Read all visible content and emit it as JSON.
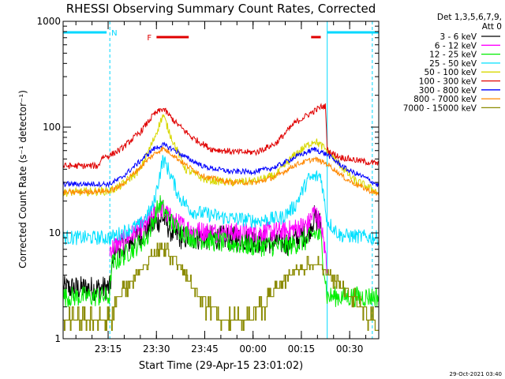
{
  "chart_data": {
    "type": "line",
    "title": "RHESSI Observing Summary Count Rates, Corrected",
    "ylabel": "Corrected Count Rate (s⁻¹ detector⁻¹)",
    "xlabel": "Start Time (29-Apr-15 23:01:02)",
    "yscale": "log",
    "ylim": [
      1,
      1000
    ],
    "xlim_minutes": [
      0,
      98
    ],
    "y_ticks": [
      {
        "v": 1,
        "label": "1"
      },
      {
        "v": 10,
        "label": "10"
      },
      {
        "v": 100,
        "label": "100"
      },
      {
        "v": 1000,
        "label": "1000"
      }
    ],
    "x_ticks": [
      {
        "t": 13.97,
        "label": "23:15"
      },
      {
        "t": 28.97,
        "label": "23:30"
      },
      {
        "t": 43.97,
        "label": "23:45"
      },
      {
        "t": 58.97,
        "label": "00:00"
      },
      {
        "t": 73.97,
        "label": "00:15"
      },
      {
        "t": 88.97,
        "label": "00:30"
      }
    ],
    "legend_header": [
      "Det 1,3,5,6,7,9,",
      "Att 0"
    ],
    "legend_position": "right",
    "timestamp": "29-Oct-2021 03:40",
    "flags": {
      "night": {
        "label": "N",
        "color": "#00d8ff",
        "segments": [
          [
            0,
            13.5
          ],
          [
            82,
            98
          ]
        ]
      },
      "flare": {
        "label": "F",
        "color": "#e00000",
        "segments": [
          [
            29,
            39
          ],
          [
            77,
            80
          ]
        ]
      }
    },
    "vlines": [
      {
        "t": 14.5,
        "style": "dashed"
      },
      {
        "t": 82,
        "style": "solid"
      },
      {
        "t": 96,
        "style": "dashed"
      }
    ],
    "series": [
      {
        "name": "3 - 6 keV",
        "color": "#000000",
        "noise": 0.12,
        "end": 80,
        "points": [
          [
            0,
            3
          ],
          [
            14.5,
            3
          ],
          [
            16,
            7
          ],
          [
            20,
            8
          ],
          [
            24,
            9.5
          ],
          [
            28,
            12
          ],
          [
            31,
            14
          ],
          [
            34,
            10
          ],
          [
            37,
            9
          ],
          [
            40,
            9
          ],
          [
            50,
            9
          ],
          [
            60,
            8.5
          ],
          [
            70,
            8
          ],
          [
            76,
            10
          ],
          [
            78,
            14
          ],
          [
            80,
            12
          ]
        ]
      },
      {
        "name": "6 - 12 keV",
        "color": "#ff00ff",
        "noise": 0.1,
        "end": 82,
        "points": [
          [
            14.5,
            7
          ],
          [
            20,
            9
          ],
          [
            26,
            12
          ],
          [
            30,
            18
          ],
          [
            34,
            13
          ],
          [
            40,
            10.5
          ],
          [
            50,
            10
          ],
          [
            60,
            10
          ],
          [
            70,
            10.5
          ],
          [
            76,
            12
          ],
          [
            78,
            16
          ],
          [
            80,
            12
          ],
          [
            82,
            5
          ]
        ]
      },
      {
        "name": "12 - 25 keV",
        "color": "#00ee00",
        "noise": 0.1,
        "end": 98,
        "points": [
          [
            0,
            2.5
          ],
          [
            14.5,
            2.5
          ],
          [
            15,
            5
          ],
          [
            20,
            6.5
          ],
          [
            26,
            9
          ],
          [
            30,
            19
          ],
          [
            34,
            12
          ],
          [
            40,
            9
          ],
          [
            50,
            8
          ],
          [
            60,
            7.5
          ],
          [
            70,
            7.5
          ],
          [
            76,
            8.5
          ],
          [
            78,
            10
          ],
          [
            80,
            9
          ],
          [
            82,
            2.5
          ],
          [
            98,
            2.5
          ]
        ]
      },
      {
        "name": "25 - 50 keV",
        "color": "#00e0ff",
        "noise": 0.07,
        "end": 98,
        "points": [
          [
            0,
            9
          ],
          [
            10,
            9
          ],
          [
            14.5,
            9
          ],
          [
            18,
            10
          ],
          [
            24,
            12
          ],
          [
            28,
            18
          ],
          [
            31,
            50
          ],
          [
            33,
            38
          ],
          [
            36,
            22
          ],
          [
            40,
            16
          ],
          [
            50,
            14
          ],
          [
            60,
            13
          ],
          [
            68,
            14
          ],
          [
            72,
            18
          ],
          [
            76,
            32
          ],
          [
            80,
            35
          ],
          [
            82,
            13
          ],
          [
            86,
            9.5
          ],
          [
            98,
            9
          ]
        ]
      },
      {
        "name": "50 - 100 keV",
        "color": "#d8d800",
        "noise": 0.04,
        "end": 98,
        "points": [
          [
            0,
            24
          ],
          [
            14.5,
            25
          ],
          [
            18,
            28
          ],
          [
            24,
            40
          ],
          [
            28,
            75
          ],
          [
            31,
            130
          ],
          [
            34,
            75
          ],
          [
            38,
            40
          ],
          [
            44,
            32
          ],
          [
            52,
            30
          ],
          [
            60,
            31
          ],
          [
            66,
            35
          ],
          [
            72,
            55
          ],
          [
            78,
            75
          ],
          [
            82,
            60
          ],
          [
            90,
            32
          ],
          [
            98,
            24
          ]
        ]
      },
      {
        "name": "100 - 300 keV",
        "color": "#e00000",
        "noise": 0.03,
        "end": 98,
        "points": [
          [
            0,
            43
          ],
          [
            11,
            43
          ],
          [
            12,
            52
          ],
          [
            14.5,
            54
          ],
          [
            18,
            62
          ],
          [
            24,
            90
          ],
          [
            28,
            130
          ],
          [
            31,
            150
          ],
          [
            35,
            110
          ],
          [
            40,
            80
          ],
          [
            46,
            62
          ],
          [
            54,
            58
          ],
          [
            60,
            58
          ],
          [
            66,
            70
          ],
          [
            72,
            110
          ],
          [
            80,
            155
          ],
          [
            81.5,
            158
          ],
          [
            82,
            60
          ],
          [
            86,
            52
          ],
          [
            92,
            48
          ],
          [
            98,
            45
          ]
        ]
      },
      {
        "name": "300 - 800 keV",
        "color": "#0000ff",
        "noise": 0.025,
        "end": 98,
        "points": [
          [
            0,
            29
          ],
          [
            14.5,
            29
          ],
          [
            18,
            33
          ],
          [
            24,
            48
          ],
          [
            28,
            62
          ],
          [
            31,
            68
          ],
          [
            34,
            62
          ],
          [
            38,
            52
          ],
          [
            44,
            42
          ],
          [
            52,
            38
          ],
          [
            60,
            38
          ],
          [
            66,
            42
          ],
          [
            72,
            52
          ],
          [
            78,
            62
          ],
          [
            82,
            55
          ],
          [
            88,
            40
          ],
          [
            94,
            33
          ],
          [
            98,
            28
          ]
        ]
      },
      {
        "name": "800 - 7000 keV",
        "color": "#ff8800",
        "noise": 0.025,
        "end": 98,
        "points": [
          [
            0,
            24
          ],
          [
            14.5,
            25
          ],
          [
            18,
            28
          ],
          [
            24,
            42
          ],
          [
            28,
            55
          ],
          [
            31,
            63
          ],
          [
            34,
            55
          ],
          [
            38,
            44
          ],
          [
            44,
            34
          ],
          [
            52,
            30
          ],
          [
            60,
            30
          ],
          [
            66,
            34
          ],
          [
            72,
            44
          ],
          [
            78,
            50
          ],
          [
            82,
            45
          ],
          [
            88,
            32
          ],
          [
            94,
            26
          ],
          [
            98,
            23
          ]
        ]
      },
      {
        "name": "7000 - 15000 keV",
        "color": "#8a8a00",
        "noise": 0.0,
        "end": 98,
        "step": true,
        "points": [
          [
            0,
            1.5
          ],
          [
            14.5,
            1.5
          ],
          [
            17,
            2.5
          ],
          [
            20,
            3.2
          ],
          [
            24,
            4.5
          ],
          [
            28,
            6
          ],
          [
            30,
            7.5
          ],
          [
            34,
            6
          ],
          [
            38,
            4
          ],
          [
            42,
            2.5
          ],
          [
            46,
            2
          ],
          [
            50,
            1.4
          ],
          [
            56,
            1.5
          ],
          [
            62,
            2
          ],
          [
            68,
            3.5
          ],
          [
            72,
            4.5
          ],
          [
            76,
            4.8
          ],
          [
            80,
            5
          ],
          [
            82,
            4
          ],
          [
            86,
            3.2
          ],
          [
            90,
            2.5
          ],
          [
            94,
            1.8
          ],
          [
            98,
            1.2
          ]
        ]
      }
    ]
  }
}
